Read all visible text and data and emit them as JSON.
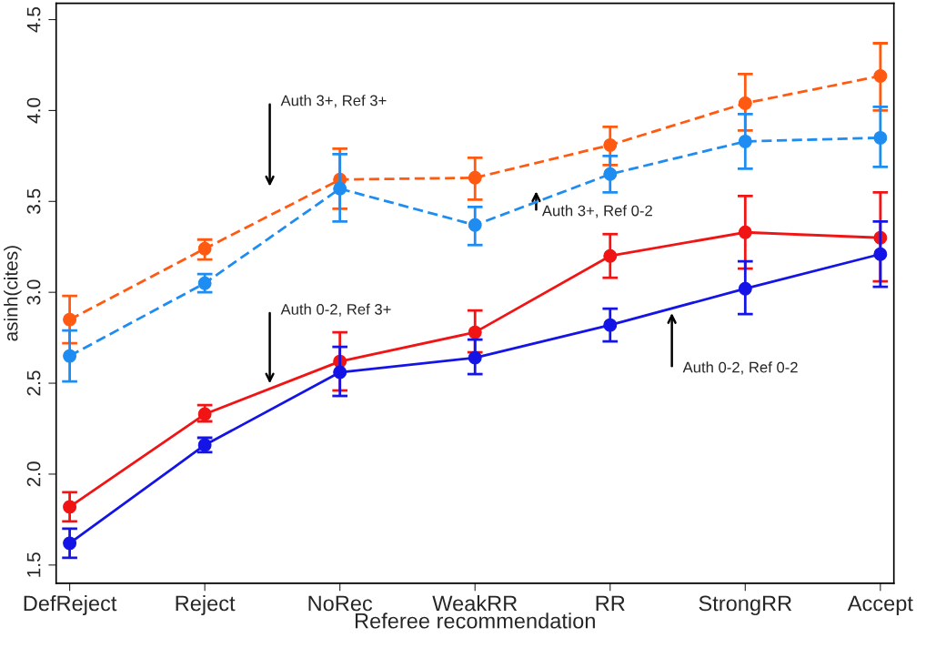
{
  "chart_data": {
    "type": "line",
    "xlabel": "Referee recommendation",
    "ylabel": "asinh(cites)",
    "categories": [
      "DefReject",
      "Reject",
      "NoRec",
      "WeakRR",
      "RR",
      "StrongRR",
      "Accept"
    ],
    "ylim": [
      1.4,
      4.59
    ],
    "yticks": [
      1.5,
      {
        "value": 2,
        "label": "2.0"
      },
      2.5,
      {
        "value": 3,
        "label": "3.0"
      },
      3.5,
      {
        "value": 4,
        "label": "4.0"
      },
      4.5
    ],
    "grid": false,
    "legend": false,
    "marker": "circle",
    "series": [
      {
        "color": "#ff5a12",
        "line_style": "dashed",
        "values": [
          2.85,
          3.24,
          3.62,
          3.63,
          3.81,
          4.04,
          4.19
        ],
        "errors": [
          [
            2.72,
            2.98
          ],
          [
            3.18,
            3.29
          ],
          [
            3.46,
            3.79
          ],
          [
            3.51,
            3.74
          ],
          [
            3.7,
            3.91
          ],
          [
            3.89,
            4.2
          ],
          [
            4.0,
            4.37
          ]
        ]
      },
      {
        "color": "#1e8cf0",
        "line_style": "dashed",
        "values": [
          2.65,
          3.05,
          3.57,
          3.37,
          3.65,
          3.83,
          3.85
        ],
        "errors": [
          [
            2.51,
            2.79
          ],
          [
            3.0,
            3.1
          ],
          [
            3.39,
            3.76
          ],
          [
            3.26,
            3.47
          ],
          [
            3.55,
            3.75
          ],
          [
            3.68,
            3.98
          ],
          [
            3.69,
            4.02
          ]
        ]
      },
      {
        "color": "#f01414",
        "line_style": "solid",
        "values": [
          1.82,
          2.33,
          2.62,
          2.78,
          3.2,
          3.33,
          3.3
        ],
        "errors": [
          [
            1.74,
            1.9
          ],
          [
            2.29,
            2.38
          ],
          [
            2.46,
            2.78
          ],
          [
            2.67,
            2.9
          ],
          [
            3.08,
            3.32
          ],
          [
            3.13,
            3.53
          ],
          [
            3.06,
            3.55
          ]
        ]
      },
      {
        "color": "#1414e6",
        "line_style": "solid",
        "values": [
          1.62,
          2.16,
          2.56,
          2.64,
          2.82,
          3.02,
          3.21
        ],
        "errors": [
          [
            1.54,
            1.7
          ],
          [
            2.12,
            2.2
          ],
          [
            2.43,
            2.7
          ],
          [
            2.55,
            2.74
          ],
          [
            2.73,
            2.91
          ],
          [
            2.88,
            3.17
          ],
          [
            3.03,
            3.39
          ]
        ]
      }
    ],
    "annotations": [
      "Auth 3+, Ref 3+",
      "Auth 3+, Ref 0-2",
      "Auth 0-2, Ref 3+",
      "Auth 0-2, Ref 0-2"
    ]
  }
}
